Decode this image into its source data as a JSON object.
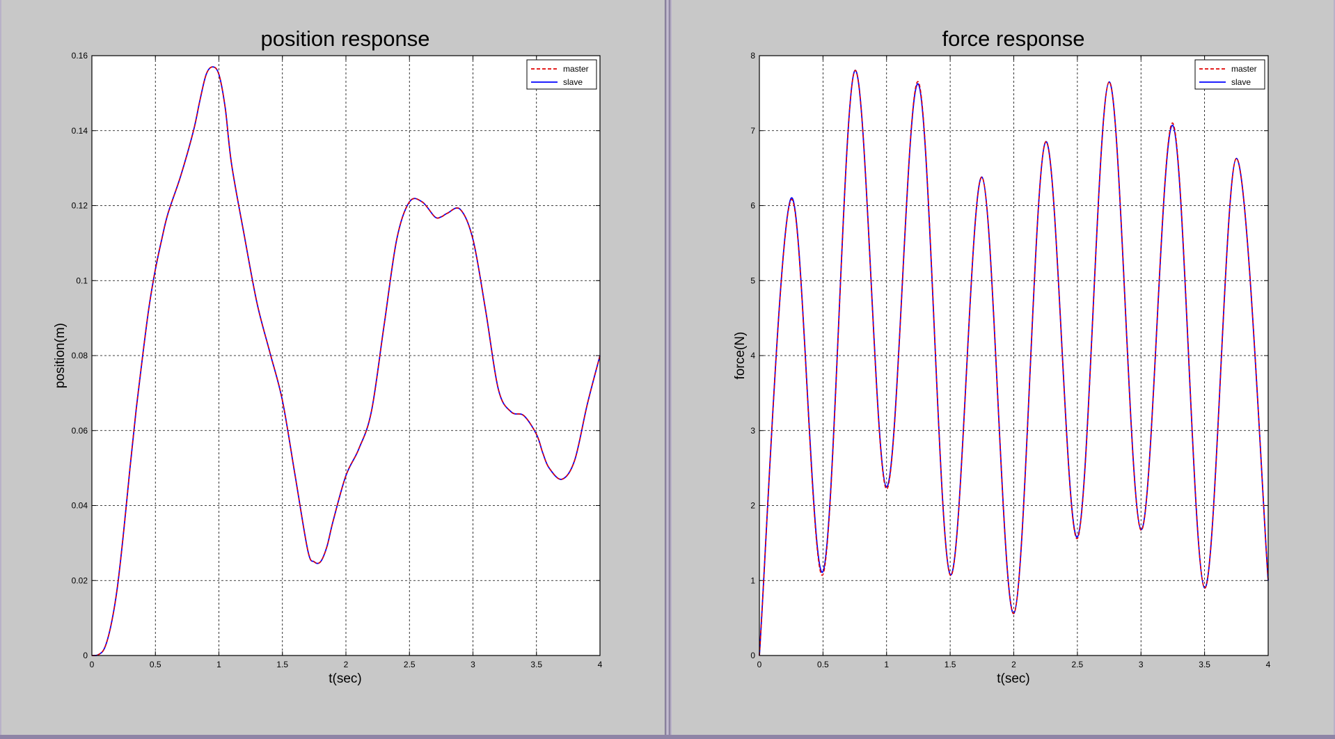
{
  "colors": {
    "master": "#e00000",
    "slave": "#0000ff",
    "figure_bg": "#c8c8c8",
    "axes_bg": "#ffffff"
  },
  "chart_data": [
    {
      "type": "line",
      "title": "position response",
      "xlabel": "t(sec)",
      "ylabel": "position(m)",
      "xlim": [
        0,
        4
      ],
      "ylim": [
        0,
        0.16
      ],
      "xticks": [
        "0",
        "0.5",
        "1",
        "1.5",
        "2",
        "2.5",
        "3",
        "3.5",
        "4"
      ],
      "yticks": [
        "0",
        "0.02",
        "0.04",
        "0.06",
        "0.08",
        "0.1",
        "0.12",
        "0.14",
        "0.16"
      ],
      "grid": true,
      "legend": "top-right",
      "series": [
        {
          "name": "master",
          "style": "dashed",
          "color": "#e00000",
          "x": [
            0,
            0.05,
            0.1,
            0.15,
            0.2,
            0.25,
            0.3,
            0.35,
            0.4,
            0.45,
            0.5,
            0.55,
            0.6,
            0.7,
            0.8,
            0.85,
            0.9,
            0.95,
            1.0,
            1.05,
            1.1,
            1.2,
            1.3,
            1.4,
            1.5,
            1.6,
            1.7,
            1.75,
            1.8,
            1.85,
            1.9,
            2.0,
            2.1,
            2.2,
            2.3,
            2.4,
            2.5,
            2.6,
            2.7,
            2.75,
            2.8,
            2.9,
            3.0,
            3.1,
            3.2,
            3.3,
            3.4,
            3.5,
            3.55,
            3.6,
            3.7,
            3.8,
            3.9,
            4.0
          ],
          "y": [
            0,
            0.0002,
            0.002,
            0.008,
            0.018,
            0.033,
            0.05,
            0.066,
            0.08,
            0.093,
            0.103,
            0.111,
            0.118,
            0.128,
            0.14,
            0.148,
            0.155,
            0.157,
            0.155,
            0.146,
            0.131,
            0.112,
            0.094,
            0.081,
            0.068,
            0.048,
            0.028,
            0.025,
            0.025,
            0.029,
            0.036,
            0.048,
            0.055,
            0.065,
            0.088,
            0.111,
            0.121,
            0.121,
            0.117,
            0.117,
            0.118,
            0.119,
            0.111,
            0.092,
            0.071,
            0.065,
            0.064,
            0.059,
            0.054,
            0.05,
            0.047,
            0.052,
            0.067,
            0.08
          ]
        },
        {
          "name": "slave",
          "style": "solid",
          "color": "#0000ff",
          "x": [
            0,
            0.05,
            0.1,
            0.15,
            0.2,
            0.25,
            0.3,
            0.35,
            0.4,
            0.45,
            0.5,
            0.55,
            0.6,
            0.7,
            0.8,
            0.85,
            0.9,
            0.95,
            1.0,
            1.05,
            1.1,
            1.2,
            1.3,
            1.4,
            1.5,
            1.6,
            1.7,
            1.75,
            1.8,
            1.85,
            1.9,
            2.0,
            2.1,
            2.2,
            2.3,
            2.4,
            2.5,
            2.6,
            2.7,
            2.75,
            2.8,
            2.9,
            3.0,
            3.1,
            3.2,
            3.3,
            3.4,
            3.5,
            3.55,
            3.6,
            3.7,
            3.8,
            3.9,
            4.0
          ],
          "y": [
            0,
            0.0002,
            0.002,
            0.008,
            0.018,
            0.033,
            0.05,
            0.066,
            0.08,
            0.093,
            0.103,
            0.111,
            0.118,
            0.128,
            0.14,
            0.148,
            0.155,
            0.157,
            0.155,
            0.146,
            0.131,
            0.112,
            0.094,
            0.081,
            0.068,
            0.048,
            0.028,
            0.025,
            0.025,
            0.029,
            0.036,
            0.048,
            0.055,
            0.065,
            0.088,
            0.111,
            0.121,
            0.121,
            0.117,
            0.117,
            0.118,
            0.119,
            0.111,
            0.092,
            0.071,
            0.065,
            0.064,
            0.059,
            0.054,
            0.05,
            0.047,
            0.052,
            0.067,
            0.08
          ]
        }
      ]
    },
    {
      "type": "line",
      "title": "force response",
      "xlabel": "t(sec)",
      "ylabel": "force(N)",
      "xlim": [
        0,
        4
      ],
      "ylim": [
        0,
        8
      ],
      "xticks": [
        "0",
        "0.5",
        "1",
        "1.5",
        "2",
        "2.5",
        "3",
        "3.5",
        "4"
      ],
      "yticks": [
        "0",
        "1",
        "2",
        "3",
        "4",
        "5",
        "6",
        "7",
        "8"
      ],
      "grid": true,
      "legend": "top-right",
      "series": [
        {
          "name": "master",
          "style": "dashed",
          "color": "#e00000",
          "x": [
            0,
            0.25,
            0.5,
            0.75,
            1.0,
            1.25,
            1.5,
            1.75,
            2.0,
            2.25,
            2.5,
            2.75,
            3.0,
            3.25,
            3.5,
            3.75,
            4.0
          ],
          "y": [
            0,
            6.08,
            1.08,
            7.8,
            2.22,
            7.65,
            1.07,
            6.38,
            0.56,
            6.85,
            1.56,
            7.65,
            1.67,
            7.1,
            0.9,
            6.63,
            1.0
          ]
        },
        {
          "name": "slave",
          "style": "solid",
          "color": "#0000ff",
          "x": [
            0,
            0.25,
            0.5,
            0.75,
            1.0,
            1.25,
            1.5,
            1.75,
            2.0,
            2.25,
            2.5,
            2.75,
            3.0,
            3.25,
            3.5,
            3.75,
            4.0
          ],
          "y": [
            0,
            6.1,
            1.12,
            7.8,
            2.25,
            7.62,
            1.08,
            6.38,
            0.56,
            6.85,
            1.58,
            7.65,
            1.68,
            7.07,
            0.9,
            6.63,
            1.0
          ]
        }
      ]
    }
  ]
}
